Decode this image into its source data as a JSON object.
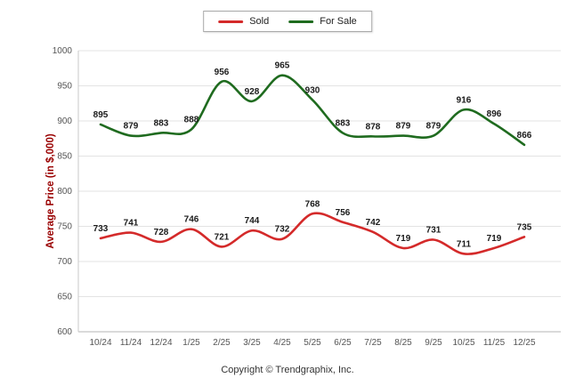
{
  "legend": {
    "items": [
      {
        "label": "Sold",
        "color": "#d42a2a"
      },
      {
        "label": "For Sale",
        "color": "#1f6b1f"
      }
    ]
  },
  "footer_text": "Copyright © Trendgraphix, Inc.",
  "chart_data": {
    "type": "line",
    "title": "",
    "xlabel": "",
    "ylabel": "Average Price (in $,000)",
    "ylabel_color": "#990000",
    "ylim": [
      600,
      1000
    ],
    "ytick_step": 50,
    "grid": true,
    "legend_position": "top-center",
    "categories": [
      "10/24",
      "11/24",
      "12/24",
      "1/25",
      "2/25",
      "3/25",
      "4/25",
      "5/25",
      "6/25",
      "7/25",
      "8/25",
      "9/25",
      "10/25",
      "11/25",
      "12/25"
    ],
    "series": [
      {
        "name": "Sold",
        "color": "#d42a2a",
        "values": [
          733,
          741,
          728,
          746,
          721,
          744,
          732,
          768,
          756,
          742,
          719,
          731,
          711,
          719,
          735
        ]
      },
      {
        "name": "For Sale",
        "color": "#1f6b1f",
        "values": [
          895,
          879,
          883,
          888,
          956,
          928,
          965,
          930,
          883,
          878,
          879,
          879,
          916,
          896,
          866
        ]
      }
    ]
  }
}
